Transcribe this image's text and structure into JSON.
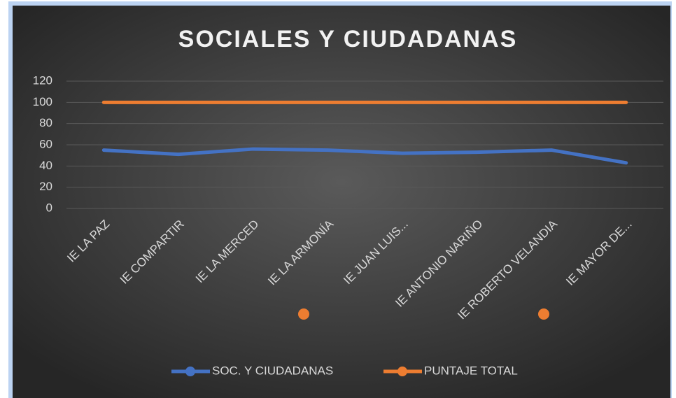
{
  "chart_data": {
    "type": "line",
    "title": "SOCIALES Y CIUDADANAS",
    "categories": [
      "IE LA PAZ",
      "IE COMPARTIR",
      "IE LA MERCED",
      "IE LA ARMONÍA",
      "IE JUAN LUIS...",
      "IE ANTONIO NARIÑO",
      "IE ROBERTO VELANDIA",
      "IE MAYOR DE..."
    ],
    "series": [
      {
        "name": "SOC. Y CIUDADANAS",
        "color": "#4472c4",
        "values": [
          55,
          51,
          56,
          55,
          52,
          53,
          55,
          43
        ]
      },
      {
        "name": "PUNTAJE TOTAL",
        "color": "#ed7d31",
        "values": [
          100,
          100,
          100,
          100,
          100,
          100,
          100,
          100
        ]
      }
    ],
    "ylim": [
      0,
      120
    ],
    "yticks": [
      0,
      20,
      40,
      60,
      80,
      100,
      120
    ],
    "grid": true,
    "legend": "bottom"
  }
}
